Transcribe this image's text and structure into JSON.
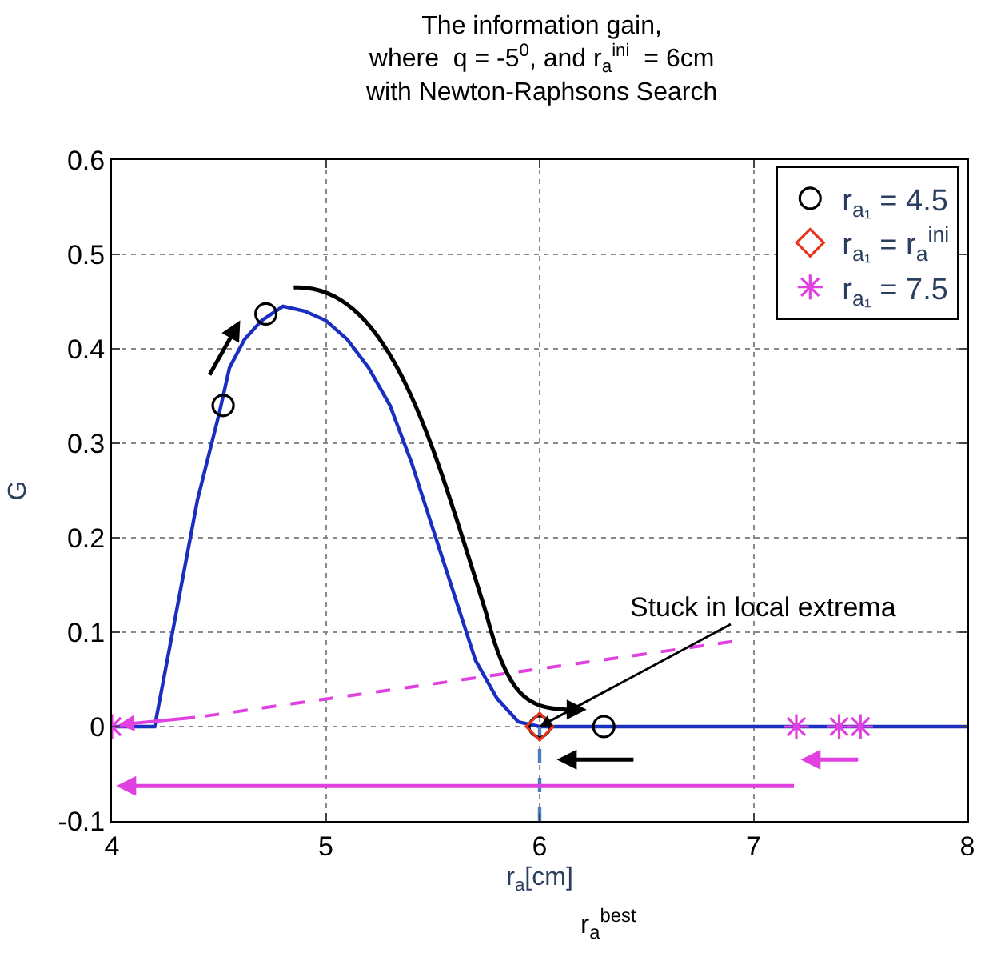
{
  "chart_data": {
    "type": "line",
    "title": "The information gain,\nwhere  q = -5$^{0}$, and r$_{a}$$^{ini}$  = 6cm\nwith Newton-Raphsons Search",
    "xlabel": "r$_{a}$[cm]",
    "ylabel": "G",
    "xlim": [
      4,
      8
    ],
    "xticks": [
      4,
      5,
      6,
      7,
      8
    ],
    "ylim": [
      -0.1,
      0.6
    ],
    "yticks": [
      -0.1,
      0,
      0.1,
      0.2,
      0.3,
      0.4,
      0.5,
      0.6
    ],
    "grid": true,
    "legend": "top right",
    "line_style": "solid",
    "series": [
      {
        "color": "#1a2fc0",
        "marker": "none",
        "x": [
          4,
          4.2,
          4.3,
          4.4,
          4.5,
          4.55,
          4.62,
          4.7,
          4.8,
          4.9,
          5.0,
          5.1,
          5.2,
          5.3,
          5.4,
          5.5,
          5.6,
          5.7,
          5.8,
          5.9,
          6.0,
          7.0,
          8.0
        ],
        "values": [
          0,
          0,
          0.12,
          0.24,
          0.33,
          0.38,
          0.41,
          0.43,
          0.445,
          0.44,
          0.43,
          0.41,
          0.38,
          0.34,
          0.28,
          0.21,
          0.14,
          0.07,
          0.03,
          0.005,
          0,
          0,
          0
        ]
      },
      {
        "type": "scatter",
        "name": "r$_{a₁}$ = 4.5",
        "color": "#000000",
        "marker": "circle",
        "x": [
          4.52,
          4.72,
          6.0,
          6.3
        ],
        "values": [
          0.34,
          0.437,
          0,
          0
        ]
      },
      {
        "type": "scatter",
        "name": "r$_{a₁}$ = r$_{a}$$^{ini}$",
        "color": "#e8341c",
        "marker": "diamond",
        "x": [
          6.0
        ],
        "values": [
          0
        ]
      },
      {
        "type": "scatter",
        "name": "r$_{a₁}$ = 7.5",
        "color": "#e040e0",
        "marker": "cross",
        "x": [
          4.0,
          7.2,
          7.4,
          7.5
        ],
        "values": [
          0,
          0,
          0,
          0
        ]
      },
      {
        "type": "line",
        "color": "#4a7fc0",
        "marker": "none",
        "line_style": "dashed",
        "x": [
          6,
          6
        ],
        "values": [
          -0.1,
          0
        ]
      }
    ],
    "annotations": [
      {
        "text": "Stuck in local extrema",
        "x": 6.0,
        "y": 0
      },
      "r$_{a}$$^{best}$"
    ]
  }
}
